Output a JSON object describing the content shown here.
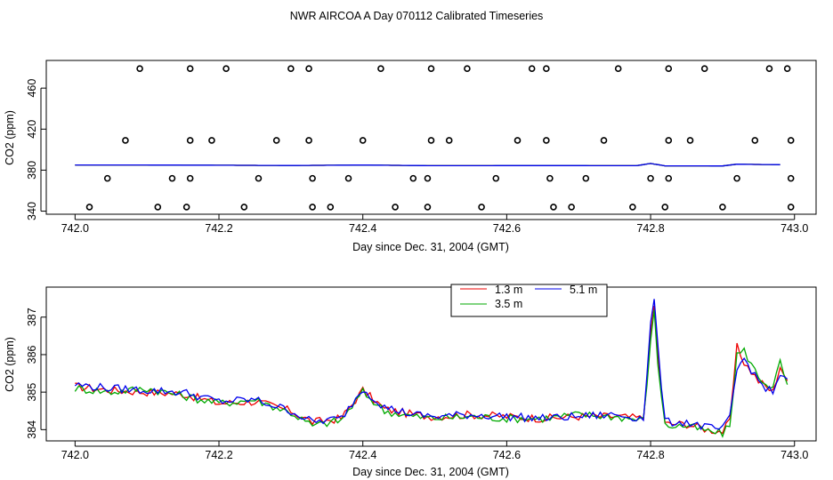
{
  "title": "NWR AIRCOA A  Day 070112  Calibrated Timeseries",
  "colors": {
    "s13": "#ee0000",
    "s35": "#00aa00",
    "s51": "#0000ee",
    "axis": "#000000"
  },
  "chart_data": [
    {
      "type": "scatter+line",
      "xlabel": "Day since Dec. 31, 2004 (GMT)",
      "ylabel": "CO2 (ppm)",
      "xlim": [
        741.96,
        743.03
      ],
      "ylim": [
        337,
        487
      ],
      "xticks": [
        742.0,
        742.2,
        742.4,
        742.6,
        742.8,
        743.0
      ],
      "xtick_labels": [
        "742.0",
        "742.2",
        "742.4",
        "742.6",
        "742.8",
        "743.0"
      ],
      "yticks": [
        340,
        380,
        420,
        460
      ],
      "ytick_labels": [
        "340",
        "380",
        "420",
        "460"
      ],
      "cal_points_x": [
        742.09,
        742.16,
        742.21,
        742.3,
        742.325,
        742.425,
        742.495,
        742.545,
        742.635,
        742.655,
        742.755,
        742.825,
        742.875,
        742.965,
        742.99,
        742.07,
        742.16,
        742.19,
        742.28,
        742.325,
        742.4,
        742.495,
        742.52,
        742.615,
        742.655,
        742.735,
        742.825,
        742.855,
        742.945,
        742.995,
        742.045,
        742.135,
        742.16,
        742.255,
        742.33,
        742.38,
        742.47,
        742.49,
        742.585,
        742.66,
        742.71,
        742.8,
        742.825,
        742.92,
        742.995,
        742.02,
        742.115,
        742.155,
        742.235,
        742.33,
        742.355,
        742.445,
        742.49,
        742.565,
        742.665,
        742.69,
        742.775,
        742.82,
        742.9,
        742.995
      ],
      "cal_points_y": [
        479,
        479,
        479,
        479,
        479,
        479,
        479,
        479,
        479,
        479,
        479,
        479,
        479,
        479,
        479,
        409,
        409,
        409,
        409,
        409,
        409,
        409,
        409,
        409,
        409,
        409,
        409,
        409,
        409,
        409,
        372,
        372,
        372,
        372,
        372,
        372,
        372,
        372,
        372,
        372,
        372,
        372,
        372,
        372,
        372,
        344,
        344,
        344,
        344,
        344,
        344,
        344,
        344,
        344,
        344,
        344,
        344,
        344,
        344,
        344
      ],
      "series": [
        {
          "name": "1.3 m",
          "x": [
            742.0,
            742.1,
            742.2,
            742.3,
            742.4,
            742.5,
            742.6,
            742.7,
            742.78,
            742.8,
            742.82,
            742.9,
            742.92,
            742.98
          ],
          "values": [
            385,
            385,
            384.8,
            384.5,
            385,
            384.3,
            384.4,
            384.4,
            384.3,
            386.5,
            384.2,
            384.1,
            385.8,
            385.3
          ]
        },
        {
          "name": "3.5 m",
          "x": [
            742.0,
            742.1,
            742.2,
            742.3,
            742.4,
            742.5,
            742.6,
            742.7,
            742.78,
            742.8,
            742.82,
            742.9,
            742.92,
            742.98
          ],
          "values": [
            385,
            385,
            384.8,
            384.5,
            385,
            384.3,
            384.4,
            384.4,
            384.3,
            386.5,
            384.2,
            384.1,
            385.8,
            385.3
          ]
        },
        {
          "name": "5.1 m",
          "x": [
            742.0,
            742.1,
            742.2,
            742.3,
            742.4,
            742.5,
            742.6,
            742.7,
            742.78,
            742.8,
            742.82,
            742.9,
            742.92,
            742.98
          ],
          "values": [
            385,
            385,
            384.8,
            384.5,
            385,
            384.3,
            384.4,
            384.4,
            384.3,
            386.5,
            384.2,
            384.1,
            385.8,
            385.3
          ]
        }
      ]
    },
    {
      "type": "line",
      "xlabel": "Day since Dec. 31, 2004 (GMT)",
      "ylabel": "CO2 (ppm)",
      "xlim": [
        741.96,
        743.03
      ],
      "ylim": [
        383.7,
        387.8
      ],
      "xticks": [
        742.0,
        742.2,
        742.4,
        742.6,
        742.8,
        743.0
      ],
      "xtick_labels": [
        "742.0",
        "742.2",
        "742.4",
        "742.6",
        "742.8",
        "743.0"
      ],
      "yticks": [
        384,
        385,
        386,
        387
      ],
      "ytick_labels": [
        "384",
        "385",
        "386",
        "387"
      ],
      "legend": {
        "position": "top-center",
        "entries": [
          "1.3 m",
          "3.5 m",
          "5.1 m"
        ]
      },
      "series": [
        {
          "name": "1.3 m",
          "x": [
            742.0,
            742.05,
            742.1,
            742.15,
            742.2,
            742.25,
            742.3,
            742.33,
            742.37,
            742.4,
            742.43,
            742.47,
            742.5,
            742.55,
            742.6,
            742.65,
            742.7,
            742.75,
            742.79,
            742.8,
            742.805,
            742.81,
            742.82,
            742.85,
            742.88,
            742.9,
            742.91,
            742.92,
            742.93,
            742.95,
            742.97,
            742.98,
            742.99
          ],
          "values": [
            385.15,
            385.05,
            385.0,
            384.95,
            384.7,
            384.75,
            384.5,
            384.2,
            384.3,
            385.05,
            384.55,
            384.4,
            384.35,
            384.4,
            384.35,
            384.3,
            384.35,
            384.35,
            384.3,
            386.5,
            387.3,
            386.0,
            384.15,
            384.15,
            384.0,
            383.95,
            384.2,
            386.2,
            385.8,
            385.3,
            385.0,
            385.7,
            385.3
          ]
        },
        {
          "name": "3.5 m",
          "x": [
            742.0,
            742.05,
            742.1,
            742.15,
            742.2,
            742.25,
            742.3,
            742.33,
            742.37,
            742.4,
            742.43,
            742.47,
            742.5,
            742.55,
            742.6,
            742.65,
            742.7,
            742.75,
            742.79,
            742.8,
            742.805,
            742.81,
            742.82,
            742.85,
            742.88,
            742.9,
            742.91,
            742.92,
            742.93,
            742.95,
            742.97,
            742.98,
            742.99
          ],
          "values": [
            385.1,
            385.0,
            385.1,
            384.9,
            384.7,
            384.8,
            384.45,
            384.1,
            384.25,
            385.0,
            384.5,
            384.35,
            384.3,
            384.35,
            384.3,
            384.3,
            384.4,
            384.35,
            384.25,
            386.3,
            387.2,
            385.8,
            384.1,
            384.1,
            383.95,
            383.9,
            384.1,
            386.0,
            386.1,
            385.4,
            385.1,
            385.8,
            385.2
          ]
        },
        {
          "name": "5.1 m",
          "x": [
            742.0,
            742.05,
            742.1,
            742.15,
            742.2,
            742.25,
            742.3,
            742.33,
            742.37,
            742.4,
            742.43,
            742.47,
            742.5,
            742.55,
            742.6,
            742.65,
            742.7,
            742.75,
            742.79,
            742.8,
            742.805,
            742.81,
            742.82,
            742.85,
            742.88,
            742.9,
            742.91,
            742.92,
            742.93,
            742.95,
            742.97,
            742.98,
            742.99
          ],
          "values": [
            385.2,
            385.1,
            385.05,
            385.0,
            384.75,
            384.8,
            384.5,
            384.2,
            384.3,
            385.1,
            384.6,
            384.4,
            384.35,
            384.4,
            384.35,
            384.3,
            384.35,
            384.4,
            384.3,
            386.8,
            387.5,
            386.2,
            384.2,
            384.2,
            384.05,
            384.0,
            384.3,
            385.6,
            385.9,
            385.3,
            384.95,
            385.5,
            385.35
          ]
        }
      ]
    }
  ]
}
